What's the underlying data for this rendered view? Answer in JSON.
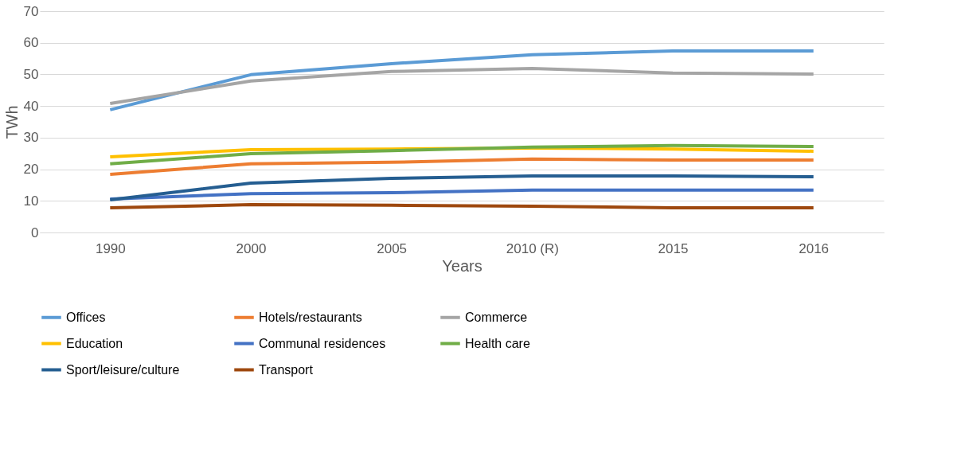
{
  "chart_data": {
    "type": "line",
    "xlabel": "Years",
    "ylabel": "TWh",
    "categories": [
      "1990",
      "2000",
      "2005",
      "2010 (R)",
      "2015",
      "2016"
    ],
    "series": [
      {
        "name": "Offices",
        "color": "#5b9bd5",
        "values": [
          38.8,
          49.9,
          53.4,
          56.2,
          57.4,
          57.4
        ]
      },
      {
        "name": "Hotels/restaurants",
        "color": "#ed7d31",
        "values": [
          18.4,
          21.7,
          22.2,
          23.2,
          22.9,
          22.9
        ]
      },
      {
        "name": "Commerce",
        "color": "#a5a5a5",
        "values": [
          40.8,
          47.9,
          50.9,
          51.9,
          50.4,
          50.1
        ]
      },
      {
        "name": "Education",
        "color": "#ffc000",
        "values": [
          23.9,
          26.2,
          26.4,
          26.7,
          26.4,
          25.7
        ]
      },
      {
        "name": "Communal residences",
        "color": "#4472c4",
        "values": [
          10.6,
          12.3,
          12.6,
          13.4,
          13.4,
          13.4
        ]
      },
      {
        "name": "Health care",
        "color": "#70ad47",
        "values": [
          21.7,
          24.9,
          25.9,
          27.0,
          27.5,
          27.2
        ]
      },
      {
        "name": "Sport/leisure/culture",
        "color": "#255e91",
        "values": [
          10.3,
          15.6,
          17.1,
          17.9,
          17.9,
          17.6
        ]
      },
      {
        "name": "Transport",
        "color": "#9e480e",
        "values": [
          7.8,
          8.8,
          8.6,
          8.3,
          7.8,
          7.8
        ]
      }
    ],
    "ylim": [
      0,
      70
    ],
    "yticks": [
      0,
      10,
      20,
      30,
      40,
      50,
      60,
      70
    ],
    "grid": "y",
    "legend": "bottom",
    "marker": "none",
    "line_style": "solid"
  }
}
